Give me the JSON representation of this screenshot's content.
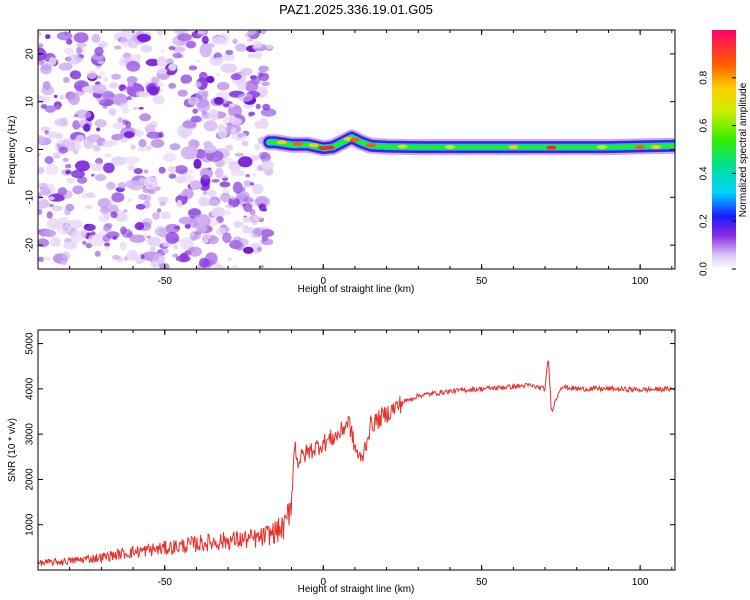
{
  "title": "PAZ1.2025.336.19.01.G05",
  "chart_data": [
    {
      "type": "heatmap",
      "xlabel": "Height of straight line (km)",
      "ylabel": "Frequency (Hz)",
      "xlim": [
        -90,
        111
      ],
      "ylim": [
        -25,
        25
      ],
      "xticks": [
        -50,
        0,
        50,
        100
      ],
      "yticks": [
        -20,
        -10,
        0,
        10,
        20
      ],
      "noise_region_xmax": -17,
      "signal_trace": {
        "x": [
          -17,
          -15,
          -10,
          -5,
          0,
          3,
          6,
          9,
          12,
          15,
          20,
          30,
          50,
          70,
          90,
          111
        ],
        "freq_hz": [
          1.5,
          1.5,
          1.0,
          1.0,
          0.3,
          0.5,
          1.5,
          2.5,
          1.5,
          0.8,
          0.6,
          0.5,
          0.5,
          0.5,
          0.5,
          0.8
        ]
      },
      "colorbar": {
        "label": "Normalized spectral amplitude",
        "range": [
          0,
          1
        ],
        "ticks": [
          0.0,
          0.2,
          0.4,
          0.6,
          0.8
        ]
      }
    },
    {
      "type": "line",
      "xlabel": "Height of straight line (km)",
      "ylabel": "SNR (10 * v/v)",
      "xlim": [
        -90,
        111
      ],
      "ylim": [
        0,
        5300
      ],
      "xticks": [
        -50,
        0,
        50,
        100
      ],
      "yticks": [
        1000,
        2000,
        3000,
        4000,
        5000
      ],
      "series": [
        {
          "name": "SNR",
          "color": "#e8302a",
          "x": [
            -90,
            -80,
            -70,
            -60,
            -50,
            -40,
            -30,
            -20,
            -15,
            -12,
            -10,
            -9,
            -8,
            -5,
            0,
            5,
            8,
            10,
            12,
            15,
            20,
            25,
            30,
            40,
            50,
            60,
            65,
            70,
            71,
            72,
            75,
            80,
            90,
            100,
            111
          ],
          "values": [
            150,
            200,
            280,
            400,
            480,
            580,
            650,
            700,
            850,
            950,
            1600,
            2800,
            2400,
            2600,
            2800,
            3000,
            3300,
            2700,
            2400,
            3200,
            3450,
            3700,
            3850,
            3950,
            4000,
            4050,
            4080,
            4000,
            4700,
            3500,
            4050,
            4000,
            4000,
            3980,
            4000
          ]
        }
      ]
    }
  ]
}
